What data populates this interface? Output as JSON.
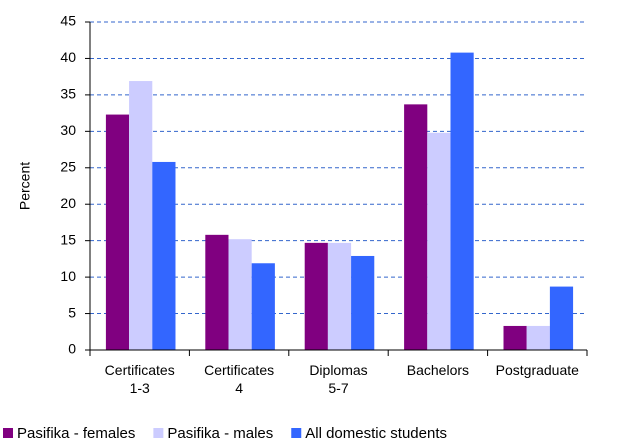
{
  "chart_data": {
    "type": "bar",
    "y_label": "Percent",
    "categories": [
      "Certificates\n1-3",
      "Certificates\n4",
      "Diplomas\n5-7",
      "Bachelors",
      "Postgraduate"
    ],
    "series": [
      {
        "name": "Pasifika - females",
        "color": "#800080",
        "values": [
          32.3,
          15.8,
          14.7,
          33.7,
          3.3
        ]
      },
      {
        "name": "Pasifika - males",
        "color": "#ccccff",
        "values": [
          36.9,
          15.2,
          14.7,
          29.8,
          3.3
        ]
      },
      {
        "name": "All domestic students",
        "color": "#3366ff",
        "values": [
          25.8,
          11.9,
          12.9,
          40.8,
          8.7
        ]
      }
    ],
    "ylim": [
      0,
      45
    ],
    "yticks": [
      0,
      5,
      10,
      15,
      20,
      25,
      30,
      35,
      40,
      45
    ],
    "grid": true,
    "legend": "bottom"
  }
}
